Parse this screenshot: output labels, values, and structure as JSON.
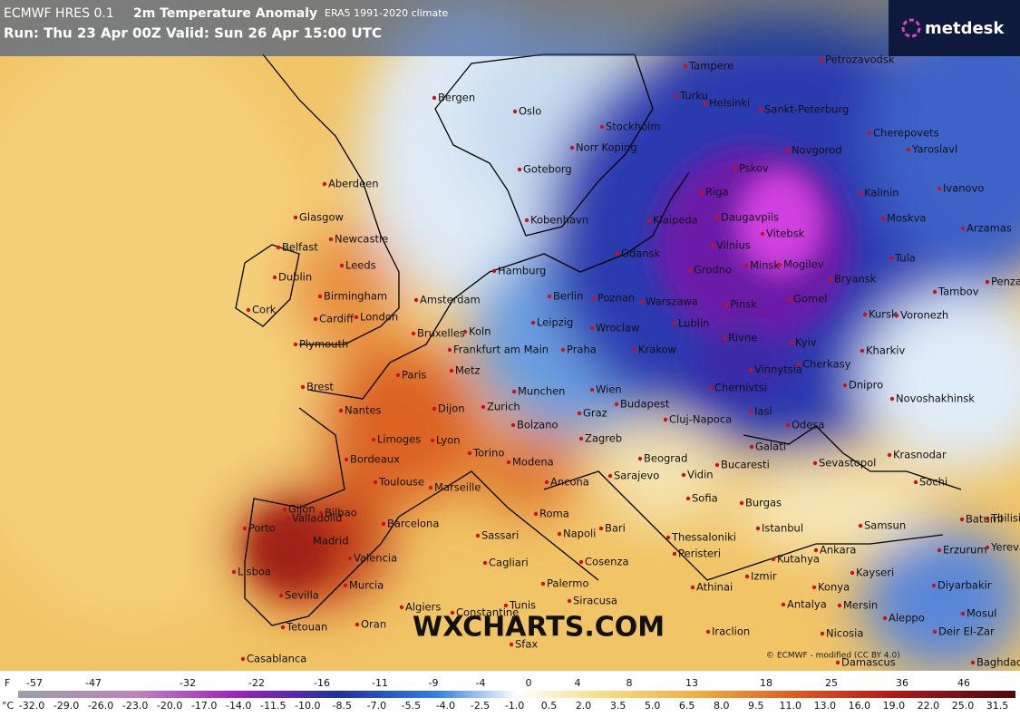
{
  "header": {
    "model": "ECMWF HRES 0.1",
    "title": "2m Temperature Anomaly",
    "climate": "ERA5 1991-2020 climate",
    "run": "Run: Thu 23 Apr 00Z Valid: Sun 26 Apr 15:00 UTC"
  },
  "logo": "metdesk",
  "watermark": "WXCHARTS.COM",
  "credit": "© ECMWF - modified (CC BY 4.0)",
  "cities": [
    "Tampere",
    "Petrozavodsk",
    "Bergen",
    "Oslo",
    "Turku",
    "Helsinki",
    "Sankt-Peterburg",
    "Stockholm",
    "Norr Koping",
    "Cherepovets",
    "Novgorod",
    "Goteborg",
    "Pskov",
    "Yaroslavl",
    "Ivanovo",
    "Aberdeen",
    "Riga",
    "Kalinin",
    "Glasgow",
    "Kobenhavn",
    "Klaipeda",
    "Daugavpils",
    "Moskva",
    "Arzamas",
    "Belfast",
    "Newcastle",
    "Vitebsk",
    "Vilnius",
    "Tula",
    "Leeds",
    "Gdansk",
    "Hamburg",
    "Grodno",
    "Minsk",
    "Mogilev",
    "Bryansk",
    "Dublin",
    "Penza",
    "Birmingham",
    "Amsterdam",
    "Berlin",
    "Poznan",
    "Warszawa",
    "Pinsk",
    "Gomel",
    "Tambov",
    "Cork",
    "Cardiff",
    "London",
    "Kursk",
    "Voronezh",
    "Leipzig",
    "Wroclaw",
    "Lublin",
    "Bruxelles",
    "Koln",
    "Plymouth",
    "Frankfurt am Main",
    "Praha",
    "Krakow",
    "Rivne",
    "Kyiv",
    "Kharkiv",
    "Brest",
    "Paris",
    "Metz",
    "Vinnytsia",
    "Cherkasy",
    "Dnipro",
    "Nantes",
    "Dijon",
    "Zurich",
    "Munchen",
    "Wien",
    "Budapest",
    "Chernivtsi",
    "Novoshakhinsk",
    "Graz",
    "Iasi",
    "Cluj-Napoca",
    "Odesa",
    "Limoges",
    "Lyon",
    "Bolzano",
    "Zagreb",
    "Galati",
    "Krasnodar",
    "Bordeaux",
    "Torino",
    "Modena",
    "Beograd",
    "Vidin",
    "Bucaresti",
    "Sevastopol",
    "Toulouse",
    "Marseille",
    "Ancona",
    "Sarajevo",
    "Sochi",
    "Gijon",
    "Bilbao",
    "Sofia",
    "Burgas",
    "Valladolid",
    "Porto",
    "Barcelona",
    "Roma",
    "Bari",
    "Thessaloniki",
    "Istanbul",
    "Samsun",
    "Batumi",
    "Tbilisi",
    "Madrid",
    "Napoli",
    "Sassari",
    "Ankara",
    "Yerevan",
    "Erzurum",
    "Lisboa",
    "Valencia",
    "Cagliari",
    "Peristeri",
    "Kutahya",
    "Cosenza",
    "Izmir",
    "Kayseri",
    "Konya",
    "Diyarbakir",
    "Sevilla",
    "Murcia",
    "Palermo",
    "Athinai",
    "Siracusa",
    "Antalya",
    "Mersin",
    "Algiers",
    "Constantine",
    "Tunis",
    "Mosul",
    "Aleppo",
    "Tetouan",
    "Oran",
    "Iraclion",
    "Nicosia",
    "Deir El-Zar",
    "Sfax",
    "Casablanca",
    "Damascus",
    "Baghdad"
  ],
  "legend": {
    "f_unit": "F",
    "f_labels": [
      "-57",
      "-47",
      "-32",
      "-22",
      "-16",
      "-11",
      "-9",
      "-4",
      "0",
      "4",
      "8",
      "13",
      "18",
      "25",
      "36",
      "46"
    ],
    "c_unit": "°C",
    "c_labels": [
      "-32.0",
      "-29.0",
      "-26.0",
      "-23.0",
      "-20.0",
      "-17.0",
      "-14.0",
      "-11.5",
      "-10.0",
      "-8.5",
      "-7.0",
      "-5.5",
      "-4.0",
      "-2.5",
      "-1.0",
      "0.5",
      "2.0",
      "3.5",
      "5.0",
      "6.5",
      "8.0",
      "9.5",
      "11.0",
      "13.0",
      "16.0",
      "19.0",
      "22.0",
      "25.0",
      "31.5"
    ]
  }
}
